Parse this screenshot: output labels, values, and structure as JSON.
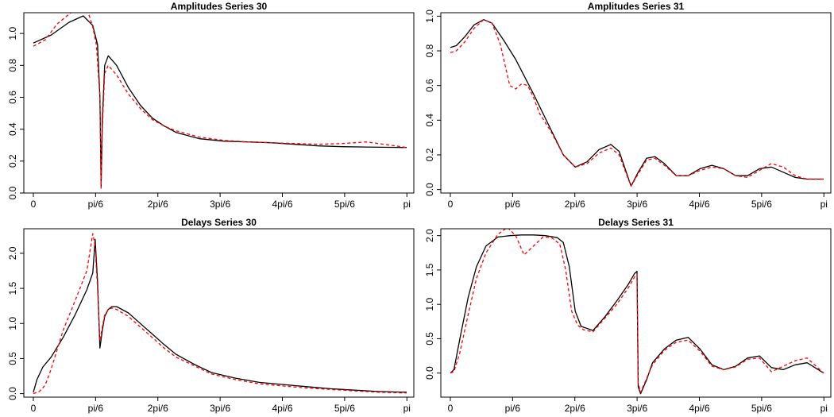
{
  "chart_data": [
    {
      "type": "line",
      "title": "Amplitudes Series 30",
      "xlabel": "",
      "ylabel": "",
      "xlim": [
        -0.08,
        3.2
      ],
      "ylim": [
        0,
        1.13
      ],
      "x_ticks": [
        0,
        0.5236,
        1.0472,
        1.5708,
        2.0944,
        2.618,
        3.1416
      ],
      "x_tick_labels": [
        "0",
        "pi/6",
        "2pi/6",
        "3pi/6",
        "4pi/6",
        "5pi/6",
        "pi"
      ],
      "y_ticks": [
        0,
        0.2,
        0.4,
        0.6,
        0.8,
        1.0
      ],
      "y_tick_labels": [
        "0.0",
        "0.2",
        "0.4",
        "0.6",
        "0.8",
        "1.0"
      ],
      "grid": false,
      "series": [
        {
          "color": "#000000",
          "dash": "solid",
          "x": [
            0,
            0.15,
            0.3,
            0.42,
            0.5,
            0.54,
            0.56,
            0.57,
            0.58,
            0.6,
            0.63,
            0.7,
            0.8,
            0.9,
            1.0,
            1.1,
            1.2,
            1.4,
            1.6,
            1.8,
            2.0,
            2.2,
            2.4,
            2.6,
            2.8,
            3.0,
            3.14
          ],
          "y": [
            0.94,
            0.99,
            1.07,
            1.11,
            1.05,
            0.93,
            0.6,
            0.04,
            0.45,
            0.8,
            0.86,
            0.8,
            0.66,
            0.55,
            0.47,
            0.42,
            0.38,
            0.34,
            0.325,
            0.32,
            0.315,
            0.305,
            0.295,
            0.29,
            0.288,
            0.286,
            0.285
          ]
        },
        {
          "color": "#ff0000",
          "dash": "dashed",
          "x": [
            0,
            0.1,
            0.2,
            0.3,
            0.35,
            0.4,
            0.45,
            0.5,
            0.53,
            0.56,
            0.57,
            0.58,
            0.6,
            0.63,
            0.7,
            0.8,
            0.9,
            1.0,
            1.1,
            1.2,
            1.4,
            1.6,
            1.8,
            2.0,
            2.2,
            2.4,
            2.6,
            2.8,
            3.0,
            3.14
          ],
          "y": [
            0.92,
            0.96,
            1.06,
            1.12,
            1.15,
            1.13,
            1.16,
            1.04,
            0.93,
            0.6,
            0.03,
            0.4,
            0.75,
            0.8,
            0.74,
            0.62,
            0.53,
            0.46,
            0.42,
            0.39,
            0.35,
            0.33,
            0.32,
            0.315,
            0.31,
            0.305,
            0.31,
            0.32,
            0.3,
            0.285
          ]
        }
      ]
    },
    {
      "type": "line",
      "title": "Amplitudes Series 31",
      "xlabel": "",
      "ylabel": "",
      "xlim": [
        -0.08,
        3.2
      ],
      "ylim": [
        -0.02,
        1.02
      ],
      "x_ticks": [
        0,
        0.5236,
        1.0472,
        1.5708,
        2.0944,
        2.618,
        3.1416
      ],
      "x_tick_labels": [
        "0",
        "pi/6",
        "2pi/6",
        "3pi/6",
        "4pi/6",
        "5pi/6",
        "pi"
      ],
      "y_ticks": [
        0,
        0.2,
        0.4,
        0.6,
        0.8,
        1.0
      ],
      "y_tick_labels": [
        "0.0",
        "0.2",
        "0.4",
        "0.6",
        "0.8",
        "1.0"
      ],
      "grid": false,
      "series": [
        {
          "color": "#000000",
          "dash": "solid",
          "x": [
            0,
            0.05,
            0.12,
            0.2,
            0.28,
            0.35,
            0.45,
            0.55,
            0.7,
            0.85,
            0.95,
            1.05,
            1.15,
            1.25,
            1.35,
            1.42,
            1.48,
            1.52,
            1.58,
            1.65,
            1.72,
            1.8,
            1.9,
            2.0,
            2.1,
            2.2,
            2.3,
            2.4,
            2.5,
            2.6,
            2.7,
            2.8,
            2.9,
            3.0,
            3.14
          ],
          "y": [
            0.82,
            0.83,
            0.88,
            0.95,
            0.98,
            0.96,
            0.86,
            0.75,
            0.55,
            0.34,
            0.2,
            0.13,
            0.16,
            0.23,
            0.26,
            0.22,
            0.1,
            0.02,
            0.1,
            0.18,
            0.19,
            0.15,
            0.08,
            0.08,
            0.12,
            0.14,
            0.12,
            0.08,
            0.08,
            0.12,
            0.13,
            0.1,
            0.07,
            0.06,
            0.06
          ]
        },
        {
          "color": "#ff0000",
          "dash": "dashed",
          "x": [
            0,
            0.05,
            0.12,
            0.2,
            0.28,
            0.35,
            0.42,
            0.5,
            0.55,
            0.6,
            0.65,
            0.7,
            0.75,
            0.85,
            0.95,
            1.05,
            1.15,
            1.25,
            1.35,
            1.42,
            1.48,
            1.52,
            1.58,
            1.65,
            1.72,
            1.8,
            1.9,
            2.0,
            2.1,
            2.2,
            2.3,
            2.4,
            2.5,
            2.6,
            2.7,
            2.8,
            2.9,
            3.0,
            3.14
          ],
          "y": [
            0.79,
            0.8,
            0.85,
            0.93,
            0.98,
            0.96,
            0.84,
            0.6,
            0.58,
            0.61,
            0.6,
            0.53,
            0.44,
            0.33,
            0.2,
            0.13,
            0.15,
            0.21,
            0.24,
            0.2,
            0.09,
            0.02,
            0.09,
            0.17,
            0.18,
            0.14,
            0.08,
            0.08,
            0.11,
            0.13,
            0.12,
            0.08,
            0.07,
            0.11,
            0.15,
            0.13,
            0.08,
            0.06,
            0.06
          ]
        }
      ]
    },
    {
      "type": "line",
      "title": "Delays Series 30",
      "xlabel": "",
      "ylabel": "",
      "xlim": [
        -0.08,
        3.2
      ],
      "ylim": [
        -0.05,
        2.35
      ],
      "x_ticks": [
        0,
        0.5236,
        1.0472,
        1.5708,
        2.0944,
        2.618,
        3.1416
      ],
      "x_tick_labels": [
        "0",
        "pi/6",
        "2pi/6",
        "3pi/6",
        "4pi/6",
        "5pi/6",
        "pi"
      ],
      "y_ticks": [
        0,
        0.5,
        1.0,
        1.5,
        2.0
      ],
      "y_tick_labels": [
        "0.0",
        "0.5",
        "1.0",
        "1.5",
        "2.0"
      ],
      "grid": false,
      "series": [
        {
          "color": "#000000",
          "dash": "solid",
          "x": [
            0,
            0.03,
            0.08,
            0.15,
            0.25,
            0.35,
            0.45,
            0.5,
            0.52,
            0.54,
            0.56,
            0.58,
            0.6,
            0.63,
            0.66,
            0.7,
            0.8,
            0.9,
            1.0,
            1.1,
            1.2,
            1.35,
            1.5,
            1.7,
            1.9,
            2.1,
            2.3,
            2.5,
            2.7,
            2.9,
            3.14
          ],
          "y": [
            0.02,
            0.2,
            0.38,
            0.52,
            0.8,
            1.12,
            1.48,
            1.72,
            2.2,
            1.6,
            0.65,
            0.9,
            1.1,
            1.2,
            1.24,
            1.24,
            1.15,
            1.0,
            0.85,
            0.7,
            0.56,
            0.42,
            0.3,
            0.22,
            0.16,
            0.13,
            0.1,
            0.07,
            0.05,
            0.03,
            0.02
          ]
        },
        {
          "color": "#ff0000",
          "dash": "dashed",
          "x": [
            0,
            0.05,
            0.1,
            0.15,
            0.25,
            0.35,
            0.45,
            0.5,
            0.52,
            0.54,
            0.56,
            0.58,
            0.6,
            0.63,
            0.66,
            0.7,
            0.8,
            0.9,
            1.0,
            1.1,
            1.2,
            1.35,
            1.5,
            1.7,
            1.9,
            2.1,
            2.3,
            2.5,
            2.7,
            2.9,
            3.14
          ],
          "y": [
            0.0,
            0.03,
            0.12,
            0.35,
            0.9,
            1.32,
            1.75,
            2.28,
            2.1,
            1.5,
            0.75,
            0.95,
            1.12,
            1.2,
            1.22,
            1.2,
            1.1,
            0.95,
            0.8,
            0.65,
            0.52,
            0.4,
            0.28,
            0.2,
            0.14,
            0.11,
            0.08,
            0.06,
            0.04,
            0.02,
            0.01
          ]
        }
      ]
    },
    {
      "type": "line",
      "title": "Delays Series 31",
      "xlabel": "",
      "ylabel": "",
      "xlim": [
        -0.08,
        3.2
      ],
      "ylim": [
        -0.35,
        2.1
      ],
      "x_ticks": [
        0,
        0.5236,
        1.0472,
        1.5708,
        2.0944,
        2.618,
        3.1416
      ],
      "x_tick_labels": [
        "0",
        "pi/6",
        "2pi/6",
        "3pi/6",
        "4pi/6",
        "5pi/6",
        "pi"
      ],
      "y_ticks": [
        0,
        0.5,
        1.0,
        1.5,
        2.0
      ],
      "y_tick_labels": [
        "0.0",
        "0.5",
        "1.0",
        "1.5",
        "2.0"
      ],
      "grid": false,
      "series": [
        {
          "color": "#000000",
          "dash": "solid",
          "x": [
            0,
            0.03,
            0.08,
            0.15,
            0.22,
            0.3,
            0.4,
            0.5,
            0.6,
            0.7,
            0.8,
            0.9,
            0.95,
            1.0,
            1.05,
            1.1,
            1.2,
            1.3,
            1.4,
            1.5,
            1.55,
            1.57,
            1.58,
            1.6,
            1.65,
            1.7,
            1.8,
            1.9,
            2.0,
            2.1,
            2.2,
            2.3,
            2.4,
            2.5,
            2.6,
            2.7,
            2.8,
            2.9,
            3.0,
            3.14
          ],
          "y": [
            0.0,
            0.05,
            0.5,
            1.1,
            1.55,
            1.85,
            1.98,
            2.0,
            2.01,
            2.01,
            2.0,
            1.97,
            1.9,
            1.55,
            0.9,
            0.68,
            0.62,
            0.82,
            1.05,
            1.3,
            1.45,
            1.48,
            -0.2,
            -0.3,
            -0.1,
            0.15,
            0.35,
            0.48,
            0.52,
            0.35,
            0.12,
            0.05,
            0.1,
            0.22,
            0.25,
            0.08,
            0.05,
            0.12,
            0.15,
            0.0
          ]
        },
        {
          "color": "#ff0000",
          "dash": "dashed",
          "x": [
            0,
            0.03,
            0.08,
            0.15,
            0.22,
            0.3,
            0.4,
            0.48,
            0.55,
            0.62,
            0.7,
            0.78,
            0.85,
            0.92,
            0.97,
            1.02,
            1.07,
            1.12,
            1.2,
            1.3,
            1.4,
            1.5,
            1.55,
            1.57,
            1.58,
            1.6,
            1.65,
            1.7,
            1.8,
            1.9,
            2.0,
            2.1,
            2.2,
            2.3,
            2.4,
            2.5,
            2.6,
            2.7,
            2.8,
            2.9,
            3.0,
            3.14
          ],
          "y": [
            0.0,
            0.02,
            0.3,
            0.85,
            1.38,
            1.75,
            2.02,
            2.12,
            2.0,
            1.72,
            1.85,
            1.98,
            1.97,
            1.88,
            1.5,
            0.9,
            0.7,
            0.63,
            0.6,
            0.8,
            1.0,
            1.25,
            1.4,
            1.43,
            -0.15,
            -0.28,
            -0.08,
            0.12,
            0.33,
            0.45,
            0.48,
            0.32,
            0.1,
            0.05,
            0.09,
            0.2,
            0.22,
            0.02,
            0.1,
            0.18,
            0.22,
            0.0
          ]
        }
      ]
    }
  ]
}
